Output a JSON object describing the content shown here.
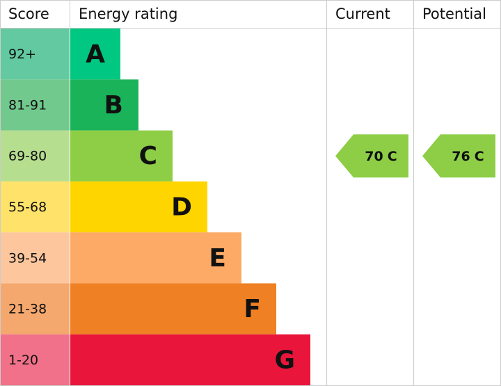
{
  "header": {
    "score": "Score",
    "rating": "Energy rating",
    "current": "Current",
    "potential": "Potential"
  },
  "bands": [
    {
      "score": "92+",
      "letter": "A",
      "color": "#00c781",
      "score_color": "#62c9a0"
    },
    {
      "score": "81-91",
      "letter": "B",
      "color": "#1bb35a",
      "score_color": "#72c98d"
    },
    {
      "score": "69-80",
      "letter": "C",
      "color": "#8dce46",
      "score_color": "#b6de8f"
    },
    {
      "score": "55-68",
      "letter": "D",
      "color": "#ffd500",
      "score_color": "#ffe26a"
    },
    {
      "score": "39-54",
      "letter": "E",
      "color": "#fcaa65",
      "score_color": "#fdc69d"
    },
    {
      "score": "21-38",
      "letter": "F",
      "color": "#ef8023",
      "score_color": "#f4a86d"
    },
    {
      "score": "1-20",
      "letter": "G",
      "color": "#e9153b",
      "score_color": "#f07189"
    }
  ],
  "current": {
    "value": 70,
    "letter": "C"
  },
  "potential": {
    "value": 76,
    "letter": "C"
  }
}
